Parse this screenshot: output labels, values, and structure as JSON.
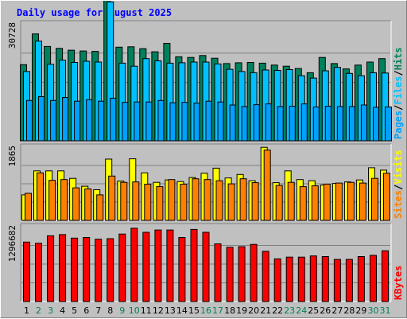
{
  "chart_data": {
    "type": "bar",
    "title": "Daily usage for August 2025",
    "categories": [
      "1",
      "2",
      "3",
      "4",
      "5",
      "6",
      "7",
      "8",
      "9",
      "10",
      "11",
      "12",
      "13",
      "14",
      "15",
      "16",
      "17",
      "18",
      "19",
      "20",
      "21",
      "22",
      "23",
      "24",
      "25",
      "26",
      "27",
      "28",
      "29",
      "30",
      "31"
    ],
    "weekend_days": [
      "2",
      "3",
      "9",
      "10",
      "16",
      "17",
      "23",
      "24",
      "30",
      "31"
    ],
    "colors": {
      "hits": "#00805c",
      "files": "#00c0ff",
      "pages": "#00a0ff",
      "visits": "#ffff00",
      "sites": "#ff8000",
      "kbytes": "#ff0000",
      "title": "#0000ff",
      "weekend_label": "#00805c",
      "weekday_label": "#000000"
    },
    "panels": [
      {
        "id": "hits-files-pages",
        "y_max_label": "30728",
        "ymax": 30728,
        "legend": [
          "Pages",
          "Files",
          "Hits"
        ],
        "series": [
          {
            "name": "Hits",
            "key": "hits",
            "values": [
              20000,
              28100,
              24800,
              24300,
              23800,
              23600,
              23500,
              38400,
              24600,
              24700,
              24200,
              23400,
              25600,
              22100,
              21900,
              22400,
              21700,
              20300,
              20500,
              20600,
              20400,
              19900,
              19600,
              19000,
              17900,
              21900,
              20300,
              18900,
              19900,
              20700,
              21600
            ]
          },
          {
            "name": "Files",
            "key": "files",
            "values": [
              18200,
              26200,
              20100,
              21200,
              20600,
              20900,
              20700,
              36500,
              20400,
              19600,
              21600,
              21000,
              20400,
              20500,
              20700,
              20700,
              20200,
              18800,
              18200,
              17900,
              18600,
              18500,
              18700,
              17100,
              16500,
              18400,
              19300,
              17700,
              17100,
              17900,
              17800
            ]
          },
          {
            "name": "Pages",
            "key": "pages",
            "values": [
              10600,
              11600,
              10600,
              11400,
              10400,
              10800,
              10400,
              11200,
              10100,
              10200,
              10200,
              10600,
              10000,
              10100,
              9900,
              10400,
              10200,
              9400,
              9000,
              9500,
              9700,
              9000,
              9100,
              9700,
              8900,
              9100,
              9000,
              9000,
              9400,
              8800,
              8900
            ]
          }
        ]
      },
      {
        "id": "visits-sites",
        "y_max_label": "1865",
        "ymax": 1865,
        "legend": [
          "Sites",
          "Visits"
        ],
        "series": [
          {
            "name": "Visits",
            "key": "visits",
            "values": [
              650,
              1260,
              1260,
              1260,
              1070,
              870,
              780,
              1560,
              1000,
              1570,
              1210,
              970,
              1030,
              990,
              1090,
              1200,
              1330,
              1080,
              1170,
              1010,
              1860,
              960,
              1260,
              1040,
              1010,
              900,
              940,
              980,
              1030,
              1340,
              1280
            ]
          },
          {
            "name": "Sites",
            "key": "sites",
            "values": [
              690,
              1210,
              1020,
              1040,
              830,
              800,
              650,
              1130,
              970,
              980,
              920,
              860,
              1040,
              920,
              1060,
              1040,
              1010,
              930,
              1060,
              960,
              1790,
              890,
              970,
              860,
              880,
              920,
              950,
              970,
              950,
              1070,
              1200
            ]
          }
        ]
      },
      {
        "id": "kbytes",
        "y_max_label": "1296682",
        "ymax": 1296682,
        "legend": [
          "KBytes"
        ],
        "series": [
          {
            "name": "KBytes",
            "key": "kbytes",
            "values": [
              1030000,
              1010000,
              1140000,
              1160000,
              1100000,
              1110000,
              1080000,
              1090000,
              1170000,
              1270000,
              1200000,
              1240000,
              1240000,
              1110000,
              1250000,
              1200000,
              1000000,
              940000,
              950000,
              990000,
              870000,
              740000,
              770000,
              770000,
              790000,
              780000,
              730000,
              730000,
              780000,
              800000,
              880000
            ]
          }
        ]
      }
    ]
  }
}
